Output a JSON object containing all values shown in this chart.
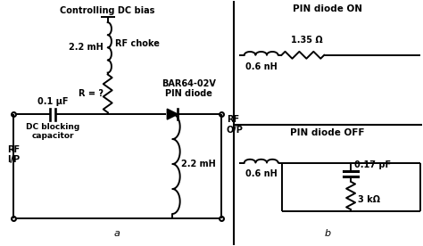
{
  "bg_color": "#ffffff",
  "title_a": "a",
  "title_b": "b",
  "dc_bias_label": "Controlling DC bias",
  "rf_choke_label": "RF choke",
  "inductor_choke_label": "2.2 mH",
  "resistor_label": "R = ?",
  "cap_label": "0.1 μF",
  "dc_block_label": "DC blocking\ncapacitor",
  "rf_ip_label": "RF\nI/P",
  "rf_op_label": "RF\nO/P",
  "diode_label": "BAR64-02V\nPIN diode",
  "inductor_bottom_label": "2.2 mH",
  "pin_on_title": "PIN diode ON",
  "pin_on_inductor_label": "0.6 nH",
  "pin_on_resistor_label": "1.35 Ω",
  "pin_off_title": "PIN diode OFF",
  "pin_off_inductor_label": "0.6 nH",
  "pin_off_cap_label": "0.17 pF",
  "pin_off_resistor_label": "3 kΩ"
}
